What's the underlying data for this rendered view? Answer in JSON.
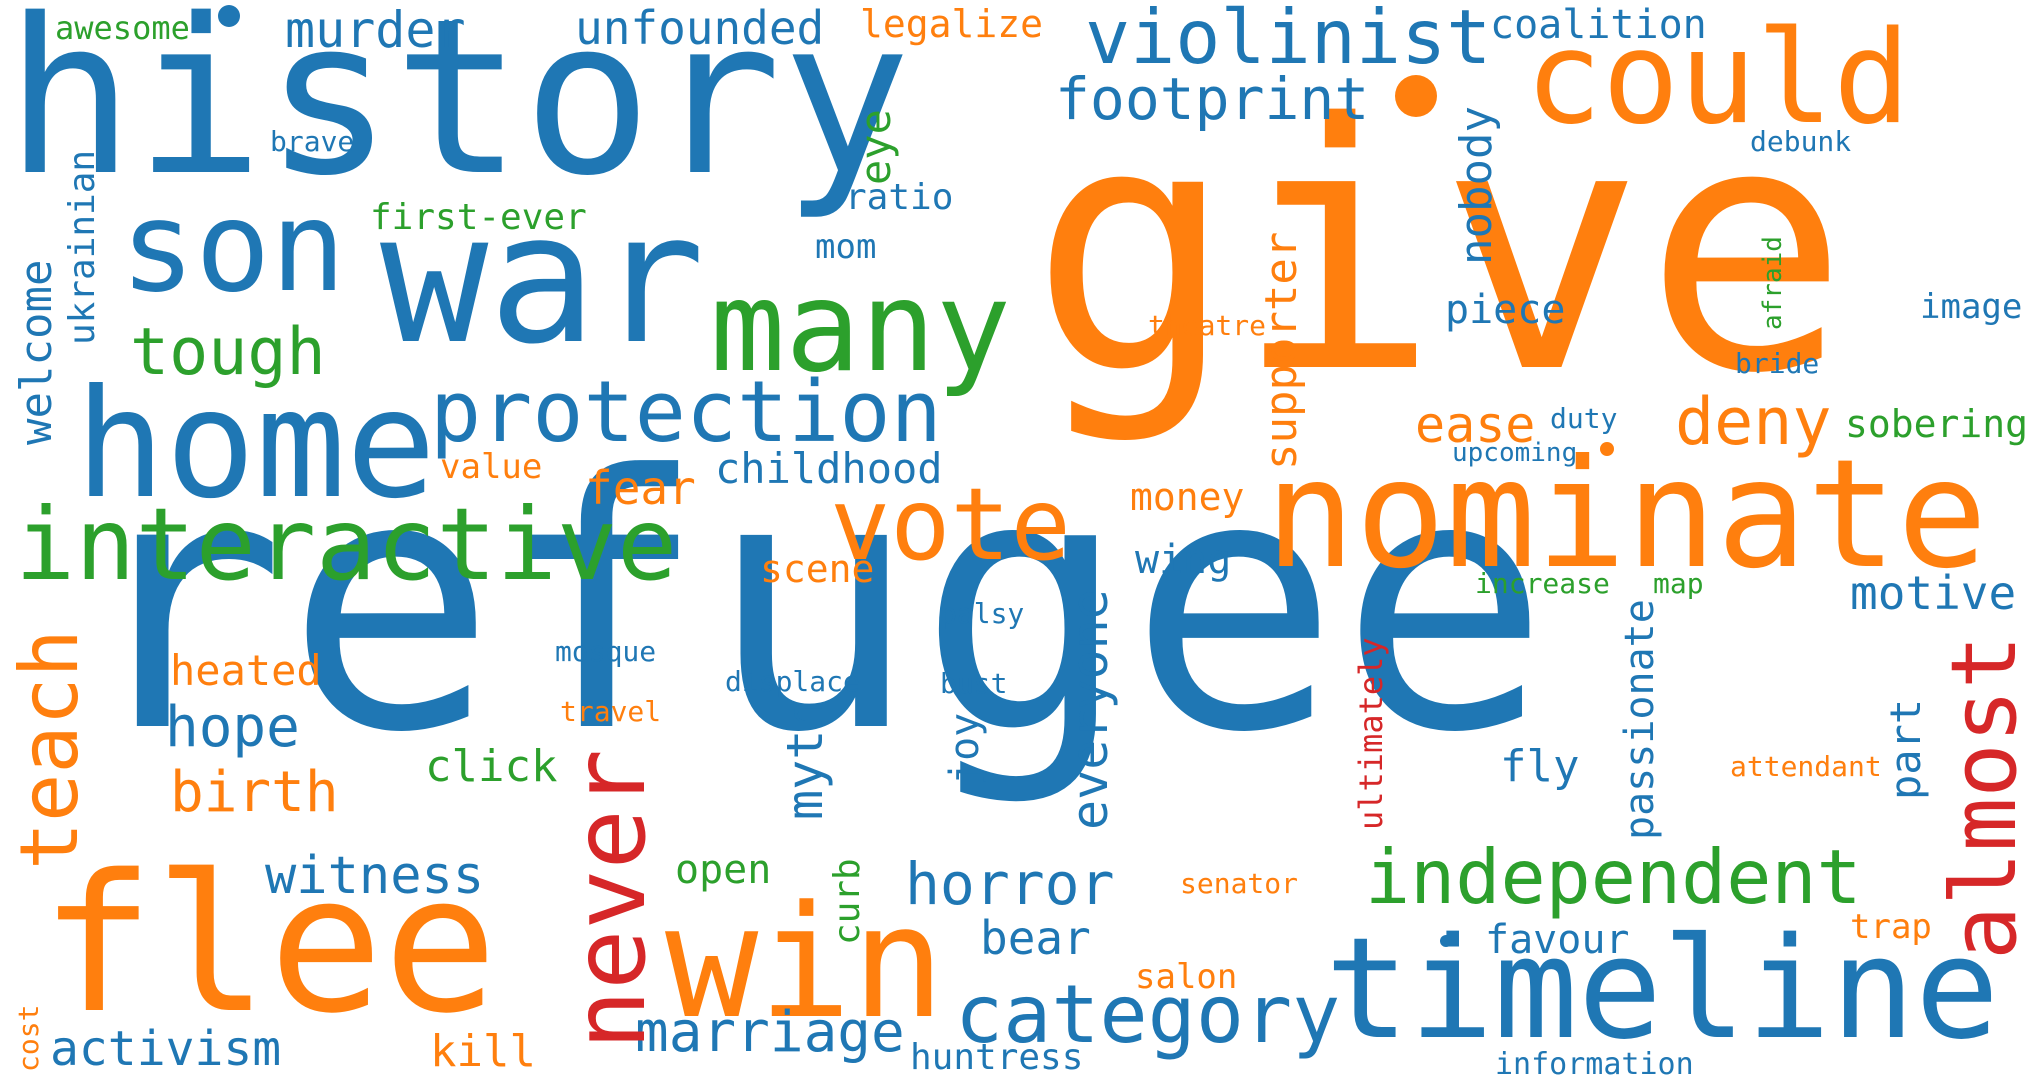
{
  "palette": {
    "blue": "#1f77b4",
    "orange": "#ff7f0e",
    "green": "#2ca02c",
    "red": "#d62728"
  },
  "words": [
    {
      "text": "refugee",
      "color": "blue"
    },
    {
      "text": "give",
      "color": "orange"
    },
    {
      "text": "history",
      "color": "blue"
    },
    {
      "text": "war",
      "color": "blue"
    },
    {
      "text": "flee",
      "color": "orange"
    },
    {
      "text": "home",
      "color": "blue"
    },
    {
      "text": "nominate",
      "color": "orange"
    },
    {
      "text": "timeline",
      "color": "blue"
    },
    {
      "text": "could",
      "color": "orange"
    },
    {
      "text": "win",
      "color": "orange"
    },
    {
      "text": "many",
      "color": "green"
    },
    {
      "text": "son",
      "color": "blue"
    },
    {
      "text": "interactive",
      "color": "green"
    },
    {
      "text": "protection",
      "color": "blue"
    },
    {
      "text": "vote",
      "color": "orange"
    },
    {
      "text": "never",
      "color": "red"
    },
    {
      "text": "almost",
      "color": "red"
    },
    {
      "text": "category",
      "color": "blue"
    },
    {
      "text": "independent",
      "color": "green"
    },
    {
      "text": "violinist",
      "color": "blue"
    },
    {
      "text": "teach",
      "color": "orange"
    },
    {
      "text": "footprint",
      "color": "blue"
    },
    {
      "text": "tough",
      "color": "green"
    },
    {
      "text": "deny",
      "color": "orange"
    },
    {
      "text": "horror",
      "color": "blue"
    },
    {
      "text": "witness",
      "color": "blue"
    },
    {
      "text": "hope",
      "color": "blue"
    },
    {
      "text": "birth",
      "color": "orange"
    },
    {
      "text": "marriage",
      "color": "blue"
    },
    {
      "text": "activism",
      "color": "blue"
    },
    {
      "text": "murder",
      "color": "blue"
    },
    {
      "text": "unfounded",
      "color": "blue"
    },
    {
      "text": "childhood",
      "color": "blue"
    },
    {
      "text": "motive",
      "color": "blue"
    },
    {
      "text": "everyone",
      "color": "blue"
    },
    {
      "text": "myth",
      "color": "blue"
    },
    {
      "text": "welcome",
      "color": "blue"
    },
    {
      "text": "ukrainian",
      "color": "blue"
    },
    {
      "text": "supporter",
      "color": "orange"
    },
    {
      "text": "passionate",
      "color": "blue"
    },
    {
      "text": "nobody",
      "color": "blue"
    },
    {
      "text": "ease",
      "color": "orange"
    },
    {
      "text": "coalition",
      "color": "blue"
    },
    {
      "text": "legalize",
      "color": "orange"
    },
    {
      "text": "fear",
      "color": "orange"
    },
    {
      "text": "bear",
      "color": "blue"
    },
    {
      "text": "piece",
      "color": "blue"
    },
    {
      "text": "favour",
      "color": "blue"
    },
    {
      "text": "fly",
      "color": "blue"
    },
    {
      "text": "click",
      "color": "green"
    },
    {
      "text": "heated",
      "color": "orange"
    },
    {
      "text": "kill",
      "color": "orange"
    },
    {
      "text": "part",
      "color": "blue"
    },
    {
      "text": "eye",
      "color": "green"
    },
    {
      "text": "wing",
      "color": "blue"
    },
    {
      "text": "money",
      "color": "orange"
    },
    {
      "text": "scene",
      "color": "orange"
    },
    {
      "text": "sobering",
      "color": "green"
    },
    {
      "text": "open",
      "color": "green"
    },
    {
      "text": "curb",
      "color": "green"
    },
    {
      "text": "huntress",
      "color": "blue"
    },
    {
      "text": "joy",
      "color": "blue"
    },
    {
      "text": "ratio",
      "color": "blue"
    },
    {
      "text": "first-ever",
      "color": "green"
    },
    {
      "text": "awesome",
      "color": "green"
    },
    {
      "text": "ultimately",
      "color": "red"
    },
    {
      "text": "salon",
      "color": "orange"
    },
    {
      "text": "image",
      "color": "blue"
    },
    {
      "text": "mom",
      "color": "blue"
    },
    {
      "text": "value",
      "color": "orange"
    },
    {
      "text": "trap",
      "color": "orange"
    },
    {
      "text": "cost",
      "color": "orange"
    },
    {
      "text": "information",
      "color": "blue"
    },
    {
      "text": "brave",
      "color": "blue"
    },
    {
      "text": "debunk",
      "color": "blue"
    },
    {
      "text": "theatre",
      "color": "orange"
    },
    {
      "text": "afraid",
      "color": "green"
    },
    {
      "text": "bride",
      "color": "blue"
    },
    {
      "text": "duty",
      "color": "blue"
    },
    {
      "text": "upcoming",
      "color": "blue"
    },
    {
      "text": "increase",
      "color": "green"
    },
    {
      "text": "map",
      "color": "green"
    },
    {
      "text": "palsy",
      "color": "blue"
    },
    {
      "text": "mosque",
      "color": "blue"
    },
    {
      "text": "displace",
      "color": "blue"
    },
    {
      "text": "bust",
      "color": "blue"
    },
    {
      "text": "travel",
      "color": "orange"
    },
    {
      "text": "attendant",
      "color": "orange"
    },
    {
      "text": "senator",
      "color": "orange"
    }
  ]
}
